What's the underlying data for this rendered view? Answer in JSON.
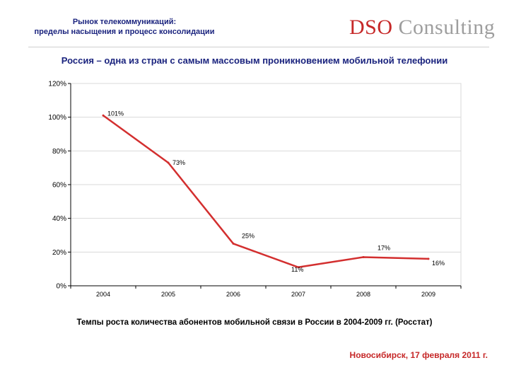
{
  "header": {
    "line1": "Рынок телекоммуникаций:",
    "line2": "пределы насыщения и процесс консолидации"
  },
  "logo": {
    "dso": "DSO",
    "consulting": "Consulting"
  },
  "slide_title": "Россия – одна из стран с самым массовым проникновением мобильной телефонии",
  "caption": "Темпы роста количества абонентов мобильной связи в России в 2004-2009 гг. (Росстат)",
  "footer": "Новосибирск, 17 февраля 2011 г.",
  "colors": {
    "line": "#d32f2f",
    "grid": "#d9d9d9",
    "title": "#1a237e",
    "footer": "#c62828"
  },
  "chart_data": {
    "type": "line",
    "categories": [
      "2004",
      "2005",
      "2006",
      "2007",
      "2008",
      "2009"
    ],
    "values": [
      101,
      73,
      25,
      11,
      17,
      16
    ],
    "data_labels": [
      "101%",
      "73%",
      "25%",
      "11%",
      "17%",
      "16%"
    ],
    "y_ticks": [
      "0%",
      "20%",
      "40%",
      "60%",
      "80%",
      "100%",
      "120%"
    ],
    "ylim": [
      0,
      120
    ],
    "unit": "%",
    "grid": true,
    "legend": "none"
  }
}
